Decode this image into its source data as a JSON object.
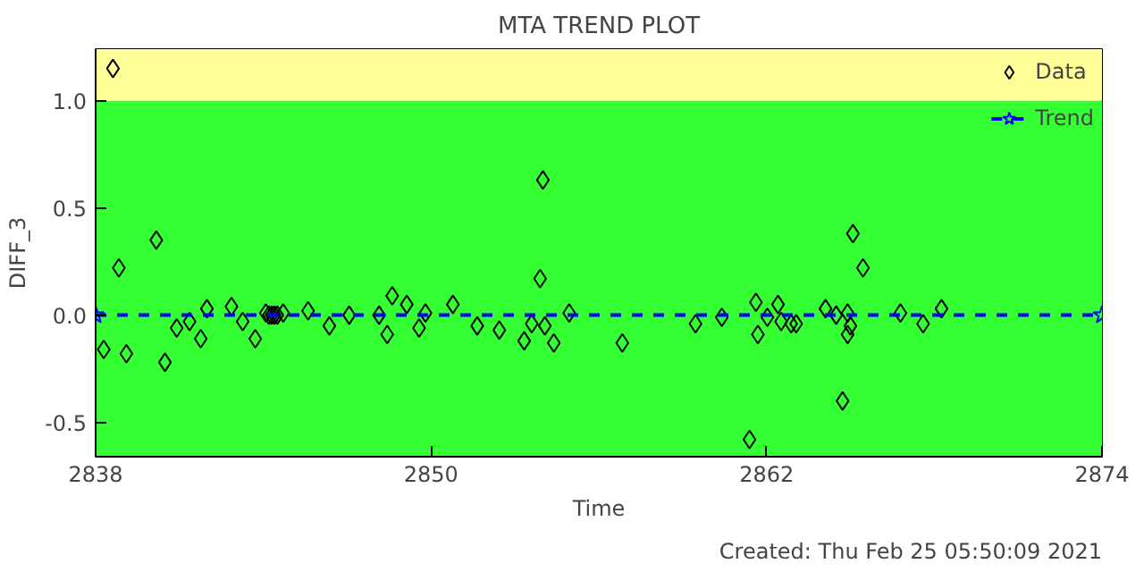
{
  "chart_data": {
    "type": "scatter",
    "title": "MTA TREND PLOT",
    "xlabel": "Time",
    "ylabel": "DIFF_3",
    "annotations": [
      "Created: Thu Feb 25 05:50:09 2021"
    ],
    "xlim": [
      2838,
      2874
    ],
    "xticks": [
      2838,
      2850,
      2862,
      2874
    ],
    "ylim": [
      -0.66,
      1.24
    ],
    "yticks": [
      {
        "value": -0.5,
        "label": "-0.5"
      },
      {
        "value": 0,
        "label": "0.0"
      },
      {
        "value": 0.5,
        "label": "0.5"
      },
      {
        "value": 1.0,
        "label": "1.0"
      }
    ],
    "bands": [
      {
        "axis": "y",
        "from": -0.66,
        "to": 1.0,
        "color": "#33ff33"
      },
      {
        "axis": "y",
        "from": 1.0,
        "to": 1.24,
        "color": "#ffff99"
      }
    ],
    "grid": false,
    "legend": "top right",
    "series": [
      {
        "name": "Data",
        "marker": "diamond",
        "color": "#000000",
        "x": [
          2838.29,
          2838.62,
          2838.83,
          2839.1,
          2840.17,
          2840.48,
          2840.9,
          2841.36,
          2841.76,
          2841.98,
          2842.86,
          2843.26,
          2843.71,
          2844.09,
          2844.2,
          2844.3,
          2844.4,
          2844.5,
          2844.71,
          2845.6,
          2846.36,
          2847.07,
          2848.14,
          2848.43,
          2848.61,
          2849.13,
          2849.57,
          2849.8,
          2850.78,
          2851.65,
          2852.44,
          2853.33,
          2853.6,
          2853.9,
          2854.0,
          2854.07,
          2854.39,
          2854.94,
          2856.84,
          2859.46,
          2860.4,
          2861.39,
          2861.62,
          2861.69,
          2862.03,
          2862.41,
          2862.52,
          2862.88,
          2863.06,
          2864.11,
          2864.49,
          2864.72,
          2864.9,
          2864.9,
          2865.0,
          2865.09,
          2865.45,
          2866.79,
          2867.6,
          2868.26
        ],
        "values": [
          -0.16,
          1.15,
          0.22,
          -0.18,
          0.35,
          -0.22,
          -0.06,
          -0.03,
          -0.11,
          0.03,
          0.04,
          -0.03,
          -0.11,
          0.01,
          0.0,
          0.0,
          0.0,
          0.0,
          0.01,
          0.02,
          -0.05,
          0.0,
          0.0,
          -0.09,
          0.09,
          0.05,
          -0.06,
          0.01,
          0.05,
          -0.05,
          -0.07,
          -0.12,
          -0.04,
          0.17,
          0.63,
          -0.05,
          -0.13,
          0.01,
          -0.13,
          -0.04,
          -0.01,
          -0.58,
          0.06,
          -0.09,
          -0.01,
          0.05,
          -0.03,
          -0.04,
          -0.04,
          0.03,
          0.0,
          -0.4,
          0.01,
          -0.09,
          -0.05,
          0.38,
          0.22,
          0.01,
          -0.04,
          0.03
        ]
      },
      {
        "name": "Trend",
        "type": "line",
        "marker": "star",
        "line_style": "dashed",
        "color": "#0000ff",
        "x": [
          2838,
          2874
        ],
        "values": [
          0.0,
          0.0
        ]
      }
    ]
  }
}
